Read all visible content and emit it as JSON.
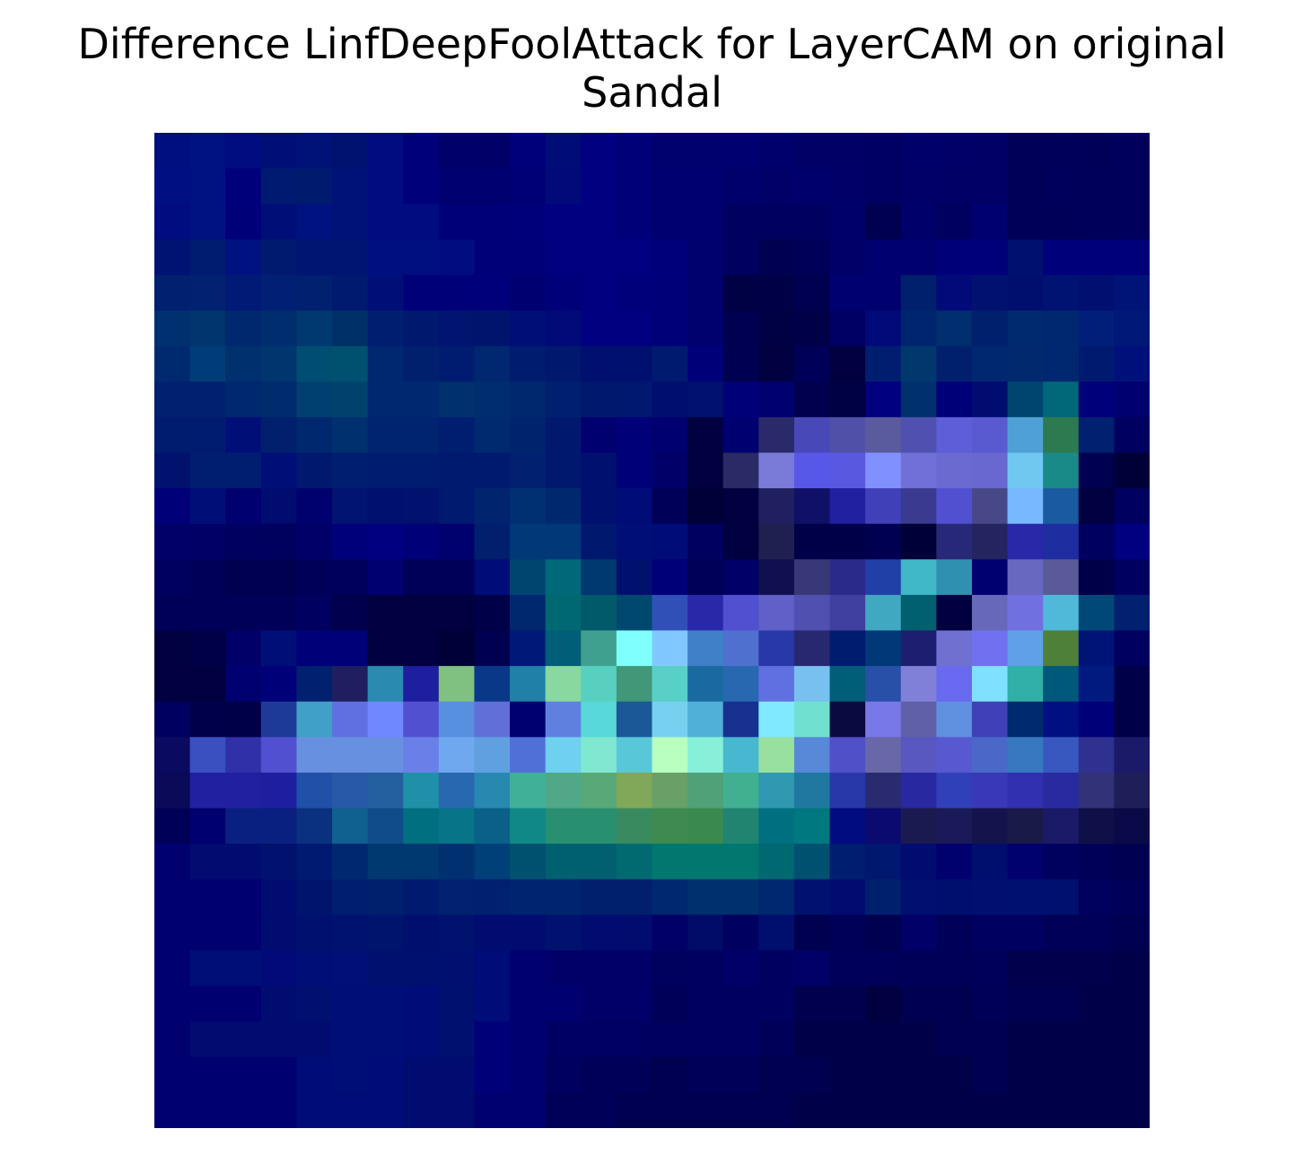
{
  "title_lines": [
    "Difference LinfDeepFoolAttack for LayerCAM on original",
    "Sandal"
  ],
  "chart_data": {
    "type": "heatmap",
    "title": "Difference LinfDeepFoolAttack for LayerCAM on original Sandal",
    "rows": 28,
    "cols": 28,
    "axes_visible": false,
    "colorbar": false,
    "cells": [
      [
        "#000f80",
        "#001280",
        "#000c7f",
        "#000f78",
        "#001278",
        "#00126f",
        "#000c80",
        "#00007a",
        "#00006a",
        "#000068",
        "#00007a",
        "#000c78",
        "#000080",
        "#000078",
        "#00006e",
        "#00006e",
        "#000070",
        "#00006c",
        "#000067",
        "#000066",
        "#000062",
        "#00006a",
        "#000068",
        "#000066",
        "#000058",
        "#00005a",
        "#000059",
        "#00005c"
      ],
      [
        "#000f82",
        "#001280",
        "#00007a",
        "#001a72",
        "#001a6e",
        "#001278",
        "#000c80",
        "#00007a",
        "#000070",
        "#000070",
        "#000075",
        "#000a78",
        "#000080",
        "#000078",
        "#000070",
        "#000070",
        "#00006c",
        "#000068",
        "#00006c",
        "#000068",
        "#000062",
        "#000068",
        "#000066",
        "#000066",
        "#000058",
        "#00005c",
        "#00005b",
        "#00005c"
      ],
      [
        "#000c80",
        "#001280",
        "#000078",
        "#000f78",
        "#001280",
        "#001278",
        "#000c80",
        "#000c80",
        "#000078",
        "#000078",
        "#00007a",
        "#000080",
        "#000080",
        "#000078",
        "#000070",
        "#000070",
        "#000060",
        "#000060",
        "#000060",
        "#00006a",
        "#000050",
        "#00006a",
        "#000060",
        "#000070",
        "#000058",
        "#000058",
        "#00005a",
        "#00005c"
      ],
      [
        "#001272",
        "#001c70",
        "#001280",
        "#001a70",
        "#001572",
        "#001570",
        "#000f80",
        "#000f80",
        "#000c80",
        "#000078",
        "#000078",
        "#000080",
        "#000080",
        "#000080",
        "#00007a",
        "#00006e",
        "#000060",
        "#000050",
        "#000058",
        "#000068",
        "#000070",
        "#000070",
        "#000078",
        "#00007a",
        "#00106e",
        "#00007a",
        "#00007a",
        "#00007a"
      ],
      [
        "#002070",
        "#002270",
        "#001a75",
        "#002075",
        "#002070",
        "#001a70",
        "#000f78",
        "#000078",
        "#000078",
        "#00007a",
        "#000070",
        "#000078",
        "#000080",
        "#00007a",
        "#000078",
        "#00006e",
        "#000045",
        "#000046",
        "#000050",
        "#000070",
        "#000070",
        "#00206e",
        "#000a78",
        "#00126e",
        "#000f6e",
        "#001272",
        "#000f70",
        "#001478"
      ],
      [
        "#003070",
        "#00356e",
        "#00286e",
        "#002d6e",
        "#003870",
        "#003068",
        "#001e70",
        "#00186e",
        "#001470",
        "#00146e",
        "#000f78",
        "#000a78",
        "#000080",
        "#000080",
        "#000078",
        "#00006e",
        "#000050",
        "#000045",
        "#000048",
        "#000062",
        "#000a78",
        "#002570",
        "#002e6e",
        "#00206e",
        "#002a70",
        "#002870",
        "#001f78",
        "#001878"
      ],
      [
        "#002a70",
        "#003d78",
        "#00306e",
        "#00366e",
        "#004d72",
        "#005070",
        "#002870",
        "#00206e",
        "#001c70",
        "#002870",
        "#001c6e",
        "#00186e",
        "#000f70",
        "#00106e",
        "#001a70",
        "#000078",
        "#000050",
        "#000040",
        "#000058",
        "#000040",
        "#001e70",
        "#00386e",
        "#00206e",
        "#002870",
        "#00296e",
        "#002870",
        "#001a70",
        "#00107a"
      ],
      [
        "#002070",
        "#002070",
        "#002870",
        "#002c6e",
        "#004070",
        "#00426e",
        "#002870",
        "#002870",
        "#00306e",
        "#002d6e",
        "#00286e",
        "#001f70",
        "#00186e",
        "#001870",
        "#000e70",
        "#00126e",
        "#000078",
        "#000070",
        "#00004e",
        "#000045",
        "#000080",
        "#00306e",
        "#000078",
        "#000c70",
        "#004470",
        "#006878",
        "#00007a",
        "#000070"
      ],
      [
        "#001c6e",
        "#001c70",
        "#000f78",
        "#00206e",
        "#00286e",
        "#00306e",
        "#002470",
        "#002470",
        "#001e70",
        "#002a70",
        "#00236e",
        "#00186e",
        "#000070",
        "#000078",
        "#000070",
        "#000040",
        "#000070",
        "#2a2a6a",
        "#4848b8",
        "#5050a8",
        "#5a5a9e",
        "#5050b0",
        "#5e5ed8",
        "#5a5ad0",
        "#50a0d8",
        "#2e7a50",
        "#002070",
        "#000060"
      ],
      [
        "#00126e",
        "#001e70",
        "#001e70",
        "#000f78",
        "#00186e",
        "#001e70",
        "#001c70",
        "#001c70",
        "#001a70",
        "#001a70",
        "#002070",
        "#00186e",
        "#00106e",
        "#000078",
        "#000068",
        "#000040",
        "#2a2a66",
        "#7a7ad8",
        "#5858e8",
        "#5858e0",
        "#8090ff",
        "#7070d8",
        "#6a6ad0",
        "#6868d0",
        "#70c8f0",
        "#1a8a88",
        "#000050",
        "#000038"
      ],
      [
        "#000078",
        "#000f78",
        "#000070",
        "#000c70",
        "#00006e",
        "#001470",
        "#00106e",
        "#00126e",
        "#001a70",
        "#00246e",
        "#003070",
        "#00286e",
        "#00106e",
        "#000c78",
        "#000058",
        "#000038",
        "#000040",
        "#202060",
        "#101068",
        "#2020a0",
        "#4040b8",
        "#3a3a90",
        "#5050d0",
        "#484888",
        "#78b8ff",
        "#1a5aa0",
        "#000040",
        "#000060"
      ],
      [
        "#000068",
        "#000066",
        "#000060",
        "#00005e",
        "#000068",
        "#00007a",
        "#000080",
        "#000078",
        "#00006e",
        "#00206e",
        "#003878",
        "#003878",
        "#00186e",
        "#000f78",
        "#000c78",
        "#000060",
        "#000040",
        "#202050",
        "#000048",
        "#000048",
        "#000050",
        "#000038",
        "#282878",
        "#242460",
        "#2828a8",
        "#1e2ea0",
        "#000060",
        "#000080"
      ],
      [
        "#000060",
        "#000058",
        "#000050",
        "#000050",
        "#000058",
        "#00005c",
        "#000070",
        "#000058",
        "#000058",
        "#000c78",
        "#004470",
        "#006878",
        "#003870",
        "#00106e",
        "#000078",
        "#000058",
        "#000068",
        "#101050",
        "#383878",
        "#2a2a8a",
        "#2040a8",
        "#40b8c8",
        "#3090b0",
        "#000070",
        "#6868c0",
        "#5a5a98",
        "#000048",
        "#000060"
      ],
      [
        "#000058",
        "#000058",
        "#000058",
        "#000058",
        "#000060",
        "#00004e",
        "#000040",
        "#000040",
        "#000040",
        "#000048",
        "#00286e",
        "#006870",
        "#005a6a",
        "#004870",
        "#3050b8",
        "#2828a8",
        "#5050d0",
        "#6060c8",
        "#5050b0",
        "#4040a0",
        "#40a8c0",
        "#006070",
        "#000040",
        "#6868b8",
        "#7070e0",
        "#50b8d8",
        "#004878",
        "#002070"
      ],
      [
        "#000040",
        "#000048",
        "#000068",
        "#000f78",
        "#000078",
        "#000078",
        "#000040",
        "#000040",
        "#000038",
        "#000050",
        "#001878",
        "#005e78",
        "#40a090",
        "#80ffff",
        "#80c8ff",
        "#4080c8",
        "#5070d0",
        "#2838a8",
        "#282870",
        "#001c6e",
        "#003878",
        "#1e1e70",
        "#7070d0",
        "#7070f0",
        "#60a0e8",
        "#4e803a",
        "#001478",
        "#000060"
      ],
      [
        "#000040",
        "#000040",
        "#000070",
        "#000078",
        "#002070",
        "#1e1e60",
        "#2a8ab0",
        "#1e1ea0",
        "#80c080",
        "#0a3888",
        "#2080a8",
        "#88d8a0",
        "#58d0c0",
        "#409878",
        "#58d0c8",
        "#1a6aa0",
        "#2868b0",
        "#6070e0",
        "#78c0f0",
        "#005e78",
        "#2850a8",
        "#8080d8",
        "#6a6af0",
        "#80e0ff",
        "#30b0a8",
        "#00587a",
        "#001a80",
        "#000048"
      ],
      [
        "#000060",
        "#00004a",
        "#000048",
        "#1e3a98",
        "#40a0c8",
        "#6070e0",
        "#7088ff",
        "#5050d0",
        "#5890e0",
        "#6070d8",
        "#000070",
        "#6080e0",
        "#58d8d8",
        "#1a5898",
        "#78d0f0",
        "#50b0d8",
        "#183090",
        "#80e8ff",
        "#70e0d0",
        "#0a0a40",
        "#7878e8",
        "#6060a8",
        "#6090e0",
        "#4040b8",
        "#002a70",
        "#001080",
        "#000078",
        "#000048"
      ],
      [
        "#0a0a60",
        "#3a50c0",
        "#3030a8",
        "#5050d0",
        "#6890e0",
        "#6890e0",
        "#6890e0",
        "#6a80e8",
        "#70a8f0",
        "#60a0e0",
        "#5070d8",
        "#70d0f0",
        "#80e8d0",
        "#58c8d8",
        "#b8ffc0",
        "#88f0d8",
        "#48b8d0",
        "#98e0a0",
        "#5888d8",
        "#5050c8",
        "#6868a8",
        "#5858c0",
        "#5858d0",
        "#4a68c8",
        "#3878c0",
        "#3858c0",
        "#303090",
        "#1a1a68"
      ],
      [
        "#0a0a58",
        "#2020a0",
        "#2020a0",
        "#1e1ea0",
        "#2050a8",
        "#2858a8",
        "#2460a0",
        "#2090a8",
        "#2868b0",
        "#2888b0",
        "#40b098",
        "#50a888",
        "#58a878",
        "#80a858",
        "#68a068",
        "#50a078",
        "#40b090",
        "#3098b0",
        "#2078a0",
        "#2838a8",
        "#2a2a70",
        "#2828a0",
        "#3040b8",
        "#3838b8",
        "#3030b0",
        "#2a2aa0",
        "#323278",
        "#1e1e58"
      ],
      [
        "#000058",
        "#000070",
        "#0a2080",
        "#0a2080",
        "#0a3080",
        "#106090",
        "#104c88",
        "#007080",
        "#087488",
        "#0a6088",
        "#108888",
        "#289070",
        "#289070",
        "#3a8a60",
        "#3e8a50",
        "#3a8a50",
        "#208470",
        "#007080",
        "#007880",
        "#000c80",
        "#0a0a70",
        "#1a1a50",
        "#1a1a58",
        "#14144c",
        "#1a1a48",
        "#1a1a68",
        "#101048",
        "#0a0a48"
      ],
      [
        "#000070",
        "#000c70",
        "#000c70",
        "#00126e",
        "#001a72",
        "#002870",
        "#003870",
        "#003870",
        "#003070",
        "#004078",
        "#005070",
        "#006070",
        "#006070",
        "#006a70",
        "#007870",
        "#007870",
        "#007870",
        "#006870",
        "#005070",
        "#001e70",
        "#001870",
        "#000c70",
        "#00006e",
        "#000f6e",
        "#00006e",
        "#00005e",
        "#000058",
        "#000050"
      ],
      [
        "#000070",
        "#000070",
        "#000070",
        "#000c70",
        "#00146e",
        "#001e70",
        "#00206e",
        "#001a70",
        "#002270",
        "#002070",
        "#002470",
        "#002470",
        "#00206e",
        "#00206e",
        "#002870",
        "#00306e",
        "#00306e",
        "#002870",
        "#00126e",
        "#000c70",
        "#00206e",
        "#000f70",
        "#000f6e",
        "#000f70",
        "#001070",
        "#00106e",
        "#00005e",
        "#000058"
      ],
      [
        "#000070",
        "#000070",
        "#000070",
        "#000c70",
        "#00106e",
        "#001270",
        "#00146e",
        "#000f6e",
        "#00126e",
        "#000c70",
        "#000c70",
        "#00126e",
        "#000c70",
        "#000c6e",
        "#000068",
        "#000c68",
        "#000060",
        "#000f6e",
        "#000050",
        "#000058",
        "#000050",
        "#000068",
        "#000058",
        "#000060",
        "#000060",
        "#000058",
        "#000058",
        "#000050"
      ],
      [
        "#000070",
        "#000f78",
        "#000f78",
        "#000a78",
        "#000f78",
        "#001078",
        "#00106e",
        "#00106e",
        "#000f70",
        "#000c78",
        "#000070",
        "#000068",
        "#000068",
        "#000068",
        "#00005e",
        "#000060",
        "#000068",
        "#000060",
        "#000068",
        "#00005a",
        "#00005a",
        "#000058",
        "#000058",
        "#00005a",
        "#00004c",
        "#00004c",
        "#00004c",
        "#000048"
      ],
      [
        "#000070",
        "#000070",
        "#000070",
        "#000c70",
        "#000f70",
        "#000f78",
        "#000f78",
        "#000c78",
        "#00106e",
        "#000c78",
        "#000070",
        "#000070",
        "#000068",
        "#000068",
        "#000058",
        "#000060",
        "#000060",
        "#000060",
        "#00004e",
        "#00004e",
        "#000040",
        "#000050",
        "#000050",
        "#000058",
        "#000050",
        "#000050",
        "#000048",
        "#000048"
      ],
      [
        "#000070",
        "#000c70",
        "#000c70",
        "#000c70",
        "#000c70",
        "#000f78",
        "#000f78",
        "#000c78",
        "#00106e",
        "#000078",
        "#000070",
        "#000064",
        "#000062",
        "#000062",
        "#000060",
        "#000060",
        "#000060",
        "#000058",
        "#000048",
        "#000048",
        "#000048",
        "#000048",
        "#000050",
        "#000050",
        "#000048",
        "#000048",
        "#000048",
        "#000048"
      ],
      [
        "#000070",
        "#000070",
        "#000070",
        "#000070",
        "#000c78",
        "#000f78",
        "#000c78",
        "#000c70",
        "#000c70",
        "#000078",
        "#000070",
        "#000060",
        "#000058",
        "#000058",
        "#000050",
        "#000058",
        "#000058",
        "#000050",
        "#000050",
        "#000048",
        "#000048",
        "#000048",
        "#000048",
        "#000050",
        "#000048",
        "#000048",
        "#000048",
        "#000048"
      ],
      [
        "#000070",
        "#000070",
        "#000070",
        "#000070",
        "#000c78",
        "#000c78",
        "#000c78",
        "#000c70",
        "#000c70",
        "#000070",
        "#000070",
        "#000058",
        "#000058",
        "#000050",
        "#000050",
        "#000050",
        "#000050",
        "#000050",
        "#000048",
        "#000048",
        "#000048",
        "#000048",
        "#000048",
        "#000048",
        "#000048",
        "#000048",
        "#000048",
        "#000048"
      ]
    ]
  }
}
